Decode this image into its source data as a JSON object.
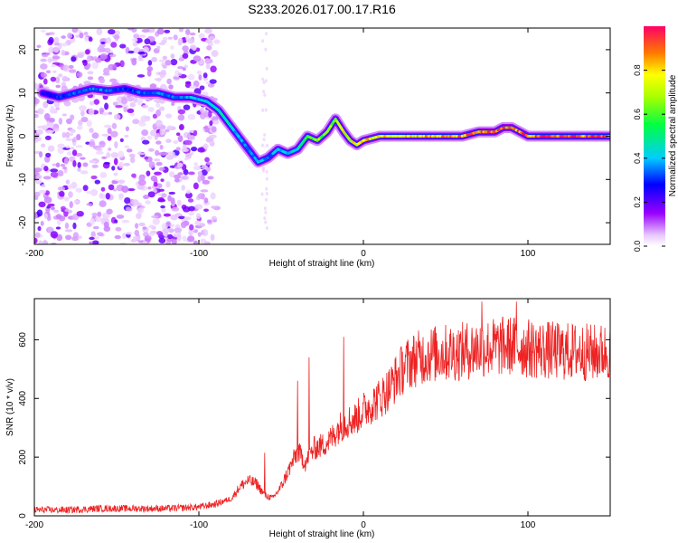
{
  "title": "S233.2026.017.00.17.R16",
  "chart_data": [
    {
      "type": "heatmap",
      "xlabel": "Height of straight line (km)",
      "ylabel": "Frequency (Hz)",
      "xlim": [
        -200,
        150
      ],
      "ylim": [
        -25,
        25
      ],
      "xticks": [
        -200,
        -100,
        0,
        100
      ],
      "xtick_labels": [
        "-200",
        "-100",
        "0",
        "100"
      ],
      "yticks": [
        20,
        10,
        0,
        -10,
        -20
      ],
      "ytick_labels": [
        "20",
        "10",
        "0",
        "-10",
        "-20"
      ],
      "colorbar": {
        "label": "Normalized spectral amplitude",
        "range": [
          0,
          1
        ],
        "ticks": [
          0.0,
          0.2,
          0.4,
          0.6,
          0.8
        ],
        "tick_labels": [
          "0.0",
          "0.2",
          "0.4",
          "0.6",
          "0.8"
        ]
      },
      "ridge": {
        "x": [
          -195,
          -185,
          -175,
          -165,
          -155,
          -145,
          -135,
          -125,
          -115,
          -105,
          -95,
          -88,
          -82,
          -76,
          -70,
          -64,
          -58,
          -52,
          -46,
          -40,
          -34,
          -28,
          -22,
          -17,
          -12,
          -8,
          -4,
          0,
          10,
          20,
          30,
          40,
          50,
          60,
          70,
          80,
          85,
          90,
          95,
          100,
          110,
          120,
          130,
          140,
          150
        ],
        "y": [
          10,
          9,
          10,
          11,
          10.5,
          11,
          10,
          10,
          9,
          9,
          8,
          6,
          3,
          0,
          -3,
          -6,
          -5,
          -3,
          -4,
          -3,
          0,
          -1,
          1,
          4,
          1,
          -1,
          -2,
          -1,
          0,
          0,
          0,
          0,
          0,
          0,
          1,
          1,
          2,
          2,
          1,
          0,
          0,
          0,
          0,
          0,
          0
        ],
        "amplitude": [
          0.25,
          0.3,
          0.35,
          0.35,
          0.35,
          0.3,
          0.35,
          0.35,
          0.35,
          0.4,
          0.45,
          0.5,
          0.45,
          0.4,
          0.35,
          0.4,
          0.35,
          0.4,
          0.4,
          0.45,
          0.6,
          0.65,
          0.65,
          0.7,
          0.75,
          0.75,
          0.8,
          0.8,
          0.8,
          0.82,
          0.82,
          0.85,
          0.85,
          0.87,
          0.9,
          0.9,
          0.9,
          0.9,
          0.9,
          0.93,
          0.95,
          0.95,
          0.95,
          0.95,
          0.95
        ]
      },
      "noise_region_x": [
        -200,
        -95
      ]
    },
    {
      "type": "line",
      "xlabel": "Height of straight line (km)",
      "ylabel": "SNR (10 * v/v)",
      "xlim": [
        -200,
        150
      ],
      "ylim": [
        0,
        740
      ],
      "xticks": [
        -200,
        -100,
        0,
        100
      ],
      "xtick_labels": [
        "-200",
        "-100",
        "0",
        "100"
      ],
      "yticks": [
        0,
        200,
        400,
        600
      ],
      "ytick_labels": [
        "0",
        "200",
        "400",
        "600"
      ],
      "series": [
        {
          "name": "SNR",
          "color": "#ee2222",
          "x": [
            -200,
            -180,
            -160,
            -140,
            -120,
            -100,
            -90,
            -80,
            -75,
            -70,
            -65,
            -60,
            -55,
            -50,
            -45,
            -40,
            -35,
            -30,
            -25,
            -20,
            -15,
            -10,
            -5,
            0,
            5,
            10,
            15,
            20,
            25,
            30,
            35,
            40,
            50,
            60,
            70,
            80,
            90,
            100,
            110,
            120,
            130,
            140,
            150
          ],
          "y": [
            20,
            20,
            25,
            25,
            25,
            30,
            40,
            60,
            100,
            120,
            110,
            70,
            60,
            100,
            160,
            220,
            180,
            230,
            240,
            260,
            300,
            320,
            330,
            360,
            380,
            400,
            430,
            470,
            510,
            530,
            540,
            550,
            555,
            560,
            570,
            575,
            580,
            570,
            565,
            560,
            560,
            555,
            560
          ],
          "spikes": [
            {
              "x": -60,
              "y": 215
            },
            {
              "x": -40,
              "y": 460
            },
            {
              "x": -33,
              "y": 540
            },
            {
              "x": -12,
              "y": 610
            },
            {
              "x": 72,
              "y": 730
            },
            {
              "x": 93,
              "y": 730
            }
          ]
        }
      ]
    }
  ]
}
